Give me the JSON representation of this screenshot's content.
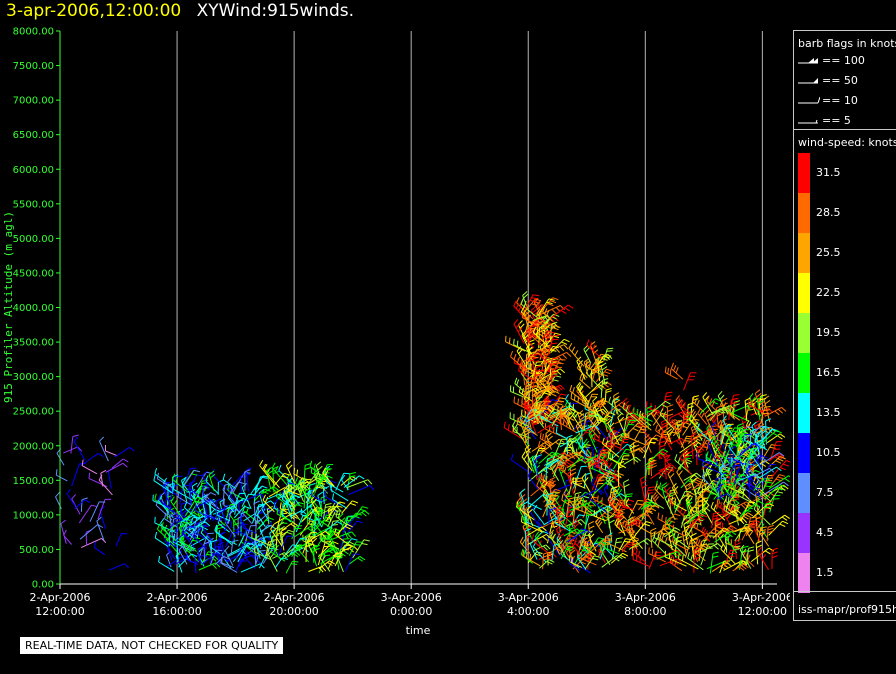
{
  "header": {
    "date_label": "3-apr-2006,12:00:00",
    "plot_name": "XYWind:915winds."
  },
  "quality_note": "REAL-TIME DATA, NOT CHECKED FOR QUALITY",
  "legend": {
    "flag_title": "barb flags in knots",
    "flags": [
      {
        "label": "== 100",
        "knots": 100
      },
      {
        "label": "== 50",
        "knots": 50
      },
      {
        "label": "== 10",
        "knots": 10
      },
      {
        "label": "== 5",
        "knots": 5
      }
    ],
    "scale_title": "wind-speed: knots",
    "scale": [
      {
        "label": "31.5",
        "color": "#ff0000"
      },
      {
        "label": "28.5",
        "color": "#ff6a00"
      },
      {
        "label": "25.5",
        "color": "#ffa500"
      },
      {
        "label": "22.5",
        "color": "#ffff00"
      },
      {
        "label": "19.5",
        "color": "#99ff33"
      },
      {
        "label": "16.5",
        "color": "#00ff00"
      },
      {
        "label": "13.5",
        "color": "#00ffff"
      },
      {
        "label": "10.5",
        "color": "#0000ff"
      },
      {
        "label": "7.5",
        "color": "#5f8fff"
      },
      {
        "label": "4.5",
        "color": "#9933ff"
      },
      {
        "label": "1.5",
        "color": "#ee82ee"
      }
    ],
    "source": "iss-mapr/prof915h"
  },
  "chart_data": {
    "type": "scatter",
    "title": "",
    "xlabel": "time",
    "ylabel": "915 Profiler Altitude (m agl)",
    "ylim": [
      0,
      8000
    ],
    "xlim": [
      "2006-04-02T12:00",
      "2006-04-03T12:30"
    ],
    "y_ticks": [
      "0.00",
      "500.00",
      "1000.00",
      "1500.00",
      "2000.00",
      "2500.00",
      "3000.00",
      "3500.00",
      "4000.00",
      "4500.00",
      "5000.00",
      "5500.00",
      "6000.00",
      "6500.00",
      "7000.00",
      "7500.00",
      "8000.00"
    ],
    "x_ticks": [
      {
        "time": "2006-04-02T12:00",
        "line1": "2-Apr-2006",
        "line2": "12:00:00"
      },
      {
        "time": "2006-04-02T16:00",
        "line1": "2-Apr-2006",
        "line2": "16:00:00"
      },
      {
        "time": "2006-04-02T20:00",
        "line1": "2-Apr-2006",
        "line2": "20:00:00"
      },
      {
        "time": "2006-04-03T00:00",
        "line1": "3-Apr-2006",
        "line2": "0:00:00"
      },
      {
        "time": "2006-04-03T04:00",
        "line1": "3-Apr-2006",
        "line2": "4:00:00"
      },
      {
        "time": "2006-04-03T08:00",
        "line1": "3-Apr-2006",
        "line2": "8:00:00"
      },
      {
        "time": "2006-04-03T12:00",
        "line1": "3-Apr-2006",
        "line2": "12:00:00"
      }
    ],
    "grid": "vertical lines at x ticks",
    "clusters": [
      {
        "t0": "2006-04-02T12:00",
        "t1": "2006-04-02T14:00",
        "z0": 200,
        "z1": 1900,
        "knots_lo": 2,
        "knots_hi": 12,
        "density": 35
      },
      {
        "t0": "2006-04-02T15:40",
        "t1": "2006-04-02T19:00",
        "z0": 150,
        "z1": 1400,
        "knots_lo": 7,
        "knots_hi": 16,
        "density": 260
      },
      {
        "t0": "2006-04-02T19:00",
        "t1": "2006-04-02T22:00",
        "z0": 150,
        "z1": 1500,
        "knots_lo": 11,
        "knots_hi": 24,
        "density": 200
      },
      {
        "t0": "2006-04-03T03:50",
        "t1": "2006-04-03T04:50",
        "z0": 2300,
        "z1": 4000,
        "knots_lo": 20,
        "knots_hi": 33,
        "density": 140
      },
      {
        "t0": "2006-04-03T03:50",
        "t1": "2006-04-03T07:00",
        "z0": 150,
        "z1": 2500,
        "knots_lo": 10,
        "knots_hi": 32,
        "density": 320
      },
      {
        "t0": "2006-04-03T05:50",
        "t1": "2006-04-03T06:40",
        "z0": 2200,
        "z1": 3300,
        "knots_lo": 18,
        "knots_hi": 31,
        "density": 45
      },
      {
        "t0": "2006-04-03T07:00",
        "t1": "2006-04-03T12:20",
        "z0": 150,
        "z1": 2500,
        "knots_lo": 16,
        "knots_hi": 33,
        "density": 420
      },
      {
        "t0": "2006-04-03T10:20",
        "t1": "2006-04-03T12:10",
        "z0": 1200,
        "z1": 2100,
        "knots_lo": 8,
        "knots_hi": 18,
        "density": 90
      },
      {
        "t0": "2006-04-03T09:00",
        "t1": "2006-04-03T09:20",
        "z0": 2800,
        "z1": 3000,
        "knots_lo": 27,
        "knots_hi": 32,
        "density": 3
      }
    ]
  }
}
